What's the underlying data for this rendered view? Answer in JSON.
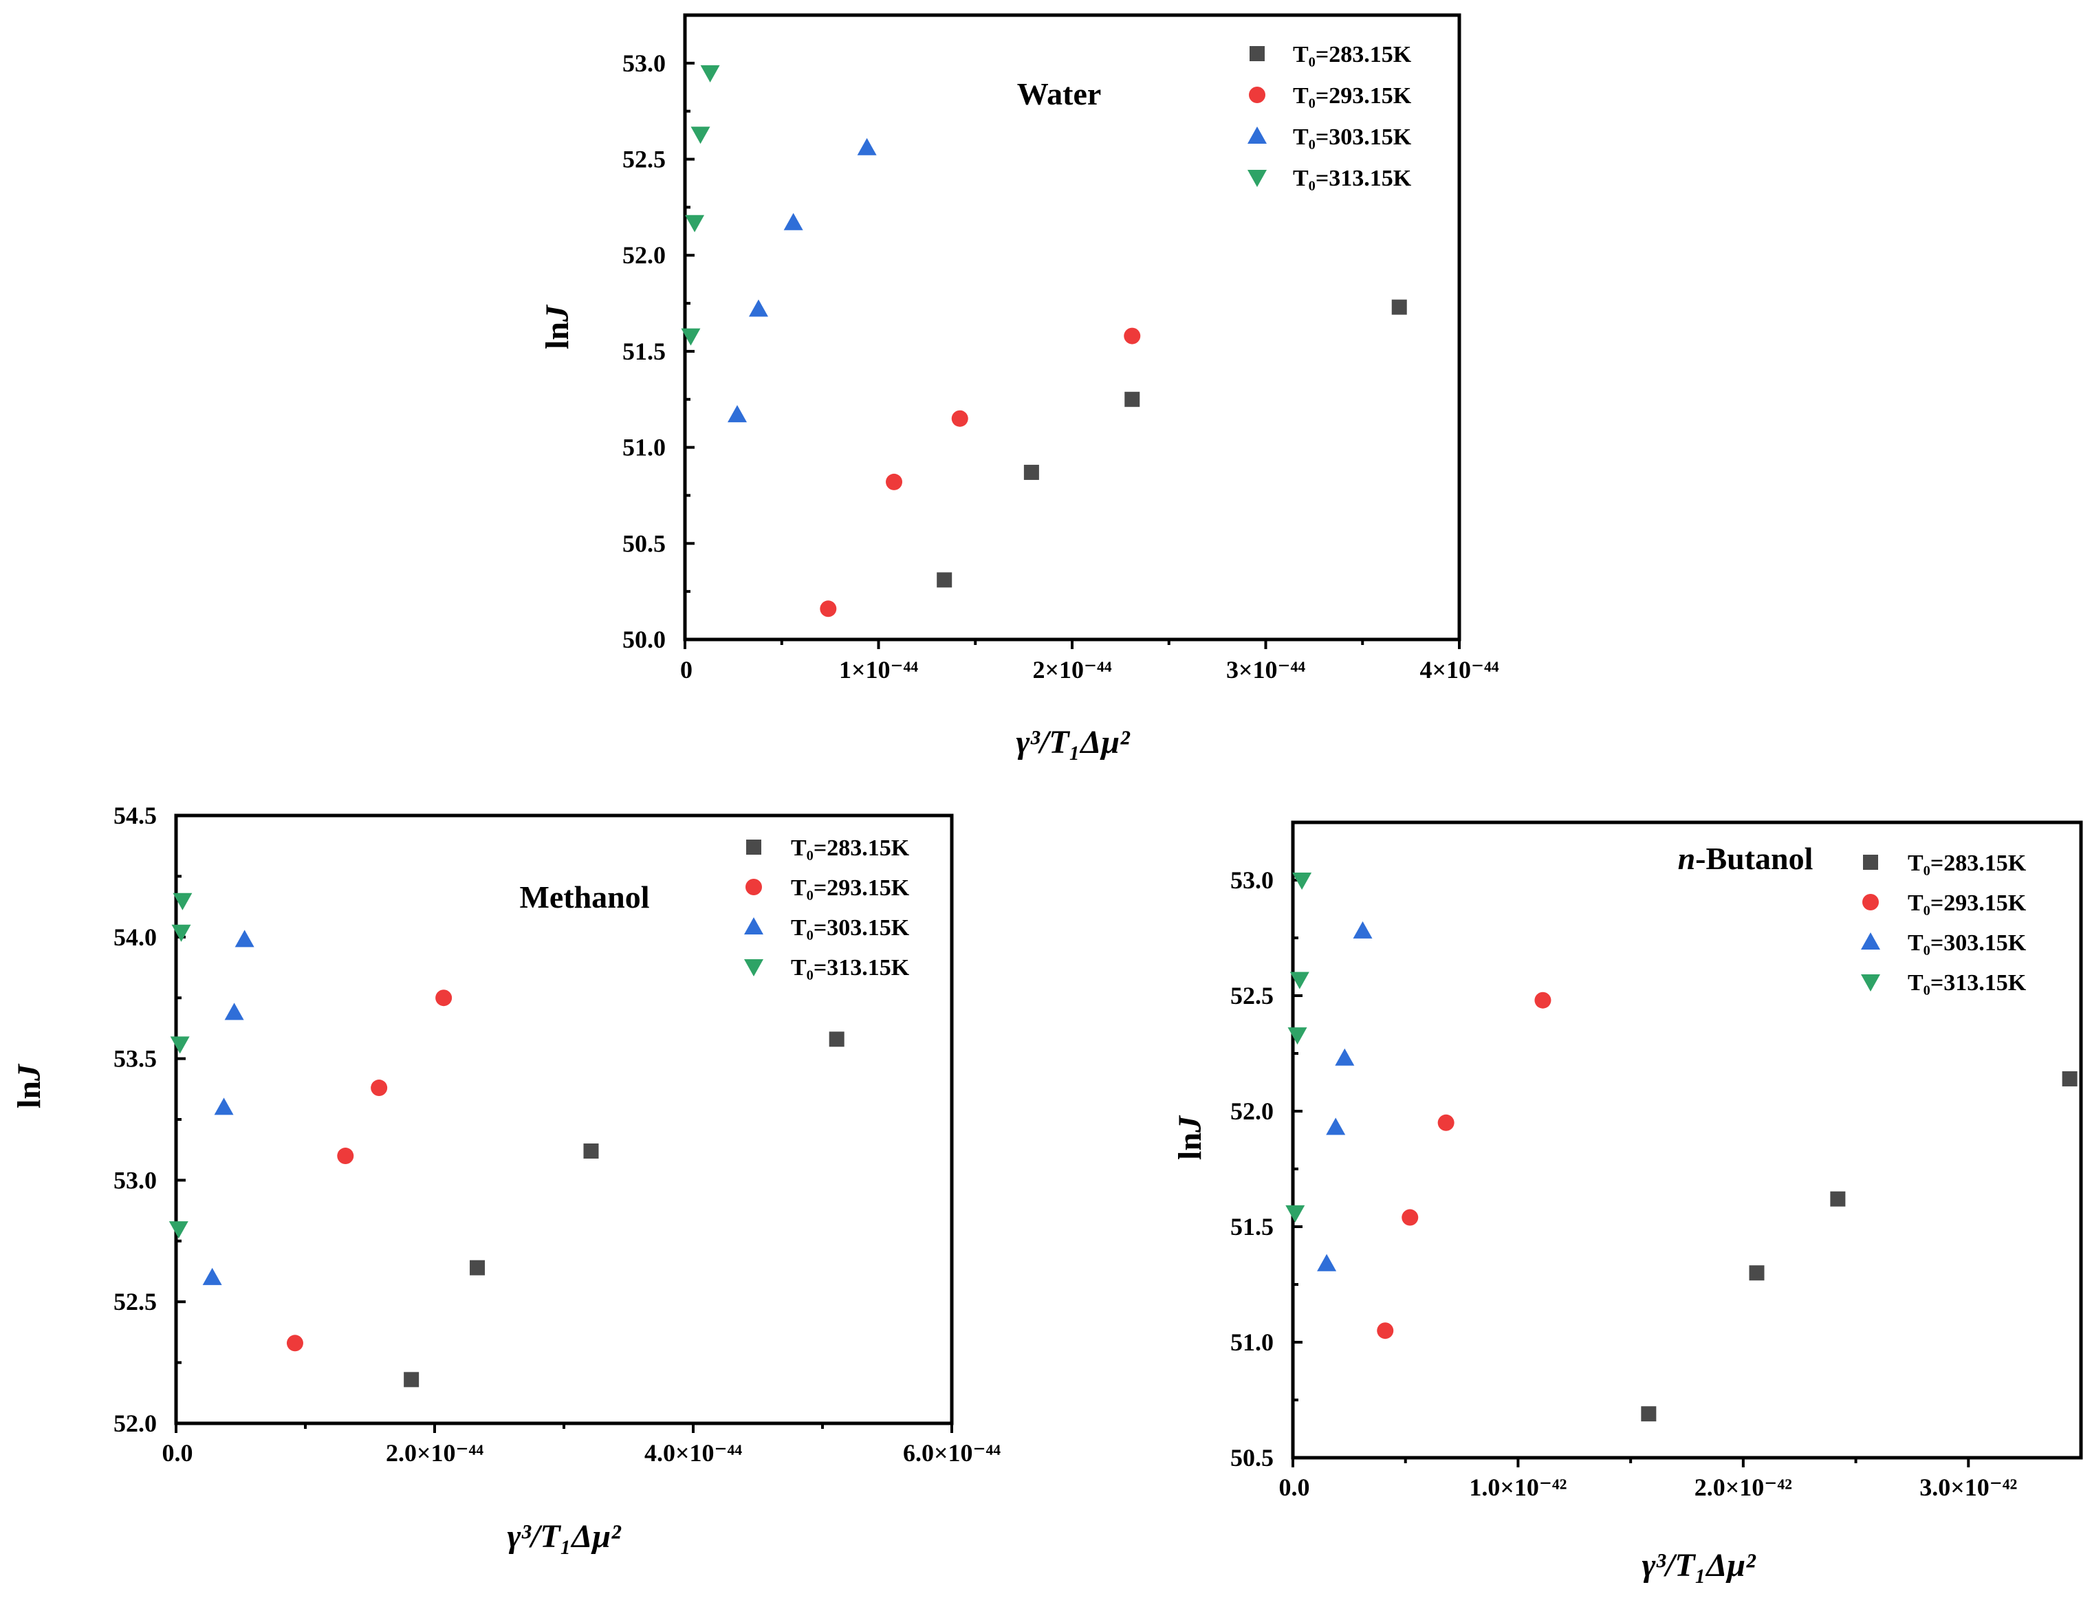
{
  "colors": {
    "series_283": "#4a4a4a",
    "series_293": "#ee3a3a",
    "series_303": "#2f6ed8",
    "series_313": "#2ea366"
  },
  "legend_labels": [
    "T₀=283.15K",
    "T₀=293.15K",
    "T₀=303.15K",
    "T₀=313.15K"
  ],
  "chart_data": [
    {
      "type": "scatter",
      "title": "Water",
      "xlabel": "γ³/T₁Δμ²",
      "ylabel": "lnJ",
      "xlim": [
        0,
        4e-44
      ],
      "ylim": [
        50.0,
        53.25
      ],
      "xticks": [
        0,
        1e-44,
        2e-44,
        3e-44,
        4e-44
      ],
      "xtick_labels": [
        "0",
        "1×10⁻⁴⁴",
        "2×10⁻⁴⁴",
        "3×10⁻⁴⁴",
        "4×10⁻⁴⁴"
      ],
      "yticks": [
        50.0,
        50.5,
        51.0,
        51.5,
        52.0,
        52.5,
        53.0
      ],
      "ytick_labels": [
        "50.0",
        "50.5",
        "51.0",
        "51.5",
        "52.0",
        "52.5",
        "53.0"
      ],
      "legend_position": "top-right",
      "series": [
        {
          "name": "T₀=283.15K",
          "marker": "square",
          "x": [
            1.34e-44,
            1.79e-44,
            2.31e-44,
            3.69e-44
          ],
          "y": [
            50.31,
            50.87,
            51.25,
            51.73
          ]
        },
        {
          "name": "T₀=293.15K",
          "marker": "circle",
          "x": [
            7.4e-45,
            1.08e-44,
            1.42e-44,
            2.31e-44
          ],
          "y": [
            50.16,
            50.82,
            51.15,
            51.58
          ]
        },
        {
          "name": "T₀=303.15K",
          "marker": "triangle-up",
          "x": [
            2.7e-45,
            3.8e-45,
            5.6e-45,
            9.4e-45
          ],
          "y": [
            51.17,
            51.72,
            52.17,
            52.56
          ]
        },
        {
          "name": "T₀=313.15K",
          "marker": "triangle-down",
          "x": [
            3e-46,
            5e-46,
            8e-46,
            1.3e-45
          ],
          "y": [
            51.58,
            52.17,
            52.63,
            52.95
          ]
        }
      ]
    },
    {
      "type": "scatter",
      "title": "Methanol",
      "xlabel": "γ³/T₁Δμ²",
      "ylabel": "lnJ",
      "xlim": [
        0,
        6e-44
      ],
      "ylim": [
        52.0,
        54.5
      ],
      "xticks": [
        0,
        2e-44,
        4e-44,
        6e-44
      ],
      "xtick_labels": [
        "0.0",
        "2.0×10⁻⁴⁴",
        "4.0×10⁻⁴⁴",
        "6.0×10⁻⁴⁴"
      ],
      "yticks": [
        52.0,
        52.5,
        53.0,
        53.5,
        54.0,
        54.5
      ],
      "ytick_labels": [
        "52.0",
        "52.5",
        "53.0",
        "53.5",
        "54.0",
        "54.5"
      ],
      "legend_position": "top-right",
      "series": [
        {
          "name": "T₀=283.15K",
          "marker": "square",
          "x": [
            1.82e-44,
            2.33e-44,
            3.21e-44,
            5.11e-44
          ],
          "y": [
            52.18,
            52.64,
            53.12,
            53.58
          ]
        },
        {
          "name": "T₀=293.15K",
          "marker": "circle",
          "x": [
            9.2e-45,
            1.31e-44,
            1.57e-44,
            2.07e-44
          ],
          "y": [
            52.33,
            53.1,
            53.38,
            53.75
          ]
        },
        {
          "name": "T₀=303.15K",
          "marker": "triangle-up",
          "x": [
            2.8e-45,
            3.7e-45,
            4.5e-45,
            5.3e-45
          ],
          "y": [
            52.6,
            53.3,
            53.69,
            53.99
          ]
        },
        {
          "name": "T₀=313.15K",
          "marker": "triangle-down",
          "x": [
            2e-46,
            3e-46,
            4e-46,
            5e-46
          ],
          "y": [
            52.8,
            53.56,
            54.02,
            54.15
          ]
        }
      ]
    },
    {
      "type": "scatter",
      "title": "n-Butanol",
      "title_italic_prefix": "n",
      "title_rest": "-Butanol",
      "xlabel": "γ³/T₁Δμ²",
      "ylabel": "lnJ",
      "xlim": [
        0,
        3.5e-42
      ],
      "ylim": [
        50.5,
        53.25
      ],
      "xticks": [
        0,
        1e-42,
        2e-42,
        3e-42
      ],
      "xtick_labels": [
        "0.0",
        "1.0×10⁻⁴²",
        "2.0×10⁻⁴²",
        "3.0×10⁻⁴²"
      ],
      "yticks": [
        50.5,
        51.0,
        51.5,
        52.0,
        52.5,
        53.0
      ],
      "ytick_labels": [
        "50.5",
        "51.0",
        "51.5",
        "52.0",
        "52.5",
        "53.0"
      ],
      "legend_position": "top-right",
      "series": [
        {
          "name": "T₀=283.15K",
          "marker": "square",
          "x": [
            1.58e-42,
            2.06e-42,
            2.42e-42,
            3.45e-42
          ],
          "y": [
            50.69,
            51.3,
            51.62,
            52.14
          ]
        },
        {
          "name": "T₀=293.15K",
          "marker": "circle",
          "x": [
            4.1e-43,
            5.2e-43,
            6.8e-43,
            1.11e-42
          ],
          "y": [
            51.05,
            51.54,
            51.95,
            52.48
          ]
        },
        {
          "name": "T₀=303.15K",
          "marker": "triangle-up",
          "x": [
            1.5e-43,
            1.9e-43,
            2.3e-43,
            3.1e-43
          ],
          "y": [
            51.34,
            51.93,
            52.23,
            52.78
          ]
        },
        {
          "name": "T₀=313.15K",
          "marker": "triangle-down",
          "x": [
            1e-44,
            2e-44,
            3e-44,
            4e-44
          ],
          "y": [
            51.56,
            52.33,
            52.57,
            53.0
          ]
        }
      ]
    }
  ]
}
